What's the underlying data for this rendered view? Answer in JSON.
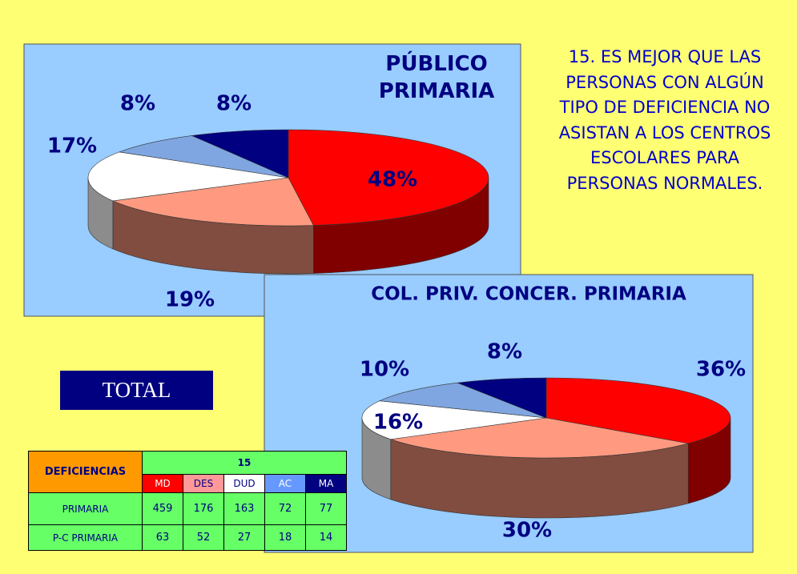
{
  "chart_data": [
    {
      "type": "pie",
      "title": "PÚBLICO PRIMARIA",
      "values": [
        48,
        19,
        17,
        8,
        8
      ],
      "value_labels": [
        "48%",
        "19%",
        "17%",
        "8%",
        "8%"
      ],
      "colors": [
        "#ff0000",
        "#ff9a80",
        "#ffffff",
        "#7fa6e0",
        "#000080"
      ]
    },
    {
      "type": "pie",
      "title": "COL. PRIV. CONCER. PRIMARIA",
      "values": [
        36,
        30,
        16,
        10,
        8
      ],
      "value_labels": [
        "36%",
        "30%",
        "16%",
        "10%",
        "8%"
      ],
      "colors": [
        "#ff0000",
        "#ff9a80",
        "#ffffff",
        "#7fa6e0",
        "#000080"
      ]
    }
  ],
  "question": "15. ES MEJOR QUE LAS PERSONAS CON ALGÚN TIPO DE DEFICIENCIA NO ASISTAN A LOS CENTROS ESCOLARES PARA PERSONAS NORMALES.",
  "total_label": "TOTAL",
  "table": {
    "corner": "DEFICIENCIAS",
    "group": "15",
    "columns": [
      "MD",
      "DES",
      "DUD",
      "AC",
      "MA"
    ],
    "rows": [
      {
        "name": "PRIMARIA",
        "values": [
          459,
          176,
          163,
          72,
          77
        ]
      },
      {
        "name": "P-C PRIMARIA",
        "values": [
          63,
          52,
          27,
          18,
          14
        ]
      }
    ]
  }
}
